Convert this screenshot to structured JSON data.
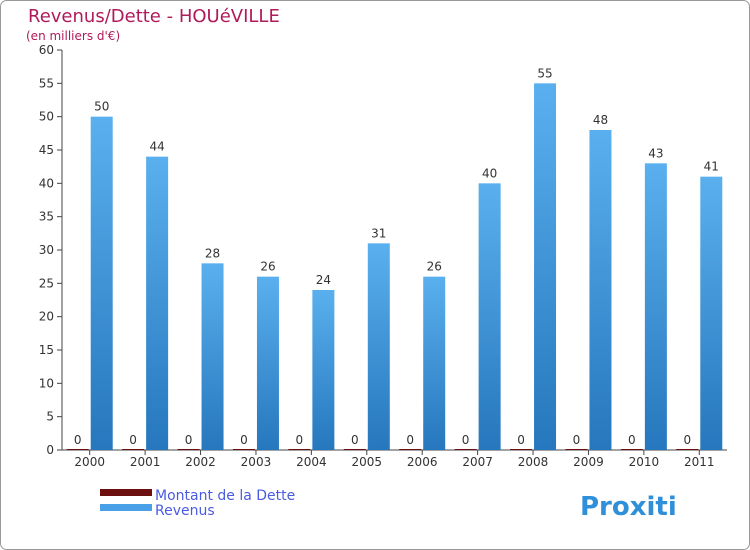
{
  "chart_title": "Revenus/Dette - HOUéVILLE",
  "chart_subtitle": "(en milliers d'€)",
  "logo_text": "Proxiti",
  "colors": {
    "title": "#b01a5a",
    "legend_text": "#4a5be0",
    "debt": "#6b0f0f",
    "revenue": "#4aa0e6",
    "revenue_dark": "#2a7fc4",
    "axis": "#444444",
    "grid": "#e6e6e6"
  },
  "chart_data": {
    "type": "bar",
    "title": "Revenus/Dette - HOUéVILLE",
    "subtitle": "(en milliers d'€)",
    "categories": [
      "2000",
      "2001",
      "2002",
      "2003",
      "2004",
      "2005",
      "2006",
      "2007",
      "2008",
      "2009",
      "2010",
      "2011"
    ],
    "series": [
      {
        "name": "Montant de la Dette",
        "values": [
          0,
          0,
          0,
          0,
          0,
          0,
          0,
          0,
          0,
          0,
          0,
          0
        ]
      },
      {
        "name": "Revenus",
        "values": [
          50,
          44,
          28,
          26,
          24,
          31,
          26,
          40,
          55,
          48,
          43,
          41
        ]
      }
    ],
    "ylim": [
      0,
      60
    ],
    "yticks": [
      0,
      5,
      10,
      15,
      20,
      25,
      30,
      35,
      40,
      45,
      50,
      55,
      60
    ],
    "grid": false,
    "legend_position": "bottom-left"
  }
}
